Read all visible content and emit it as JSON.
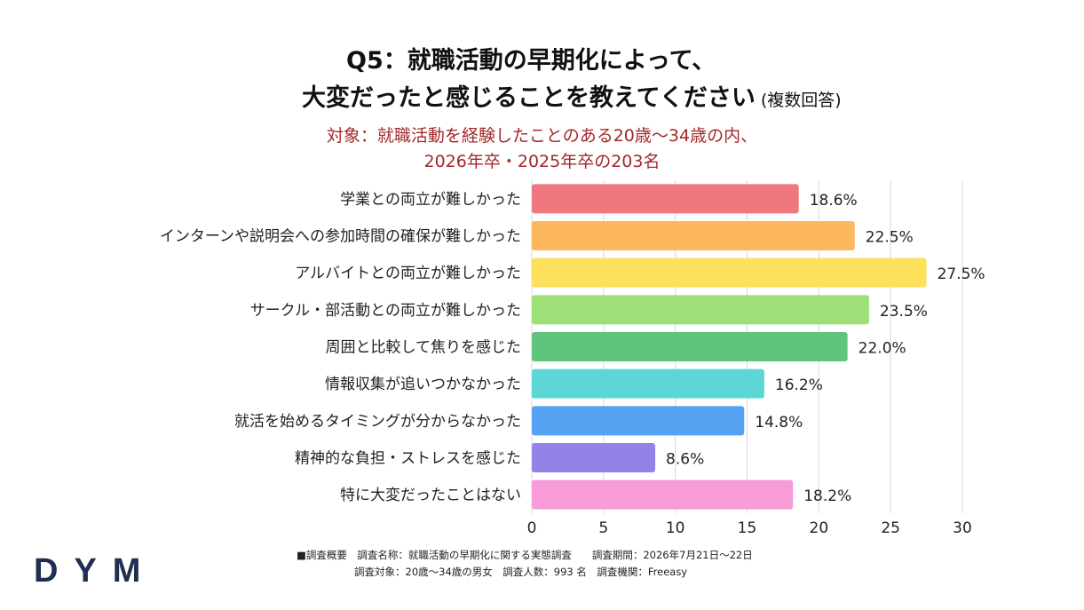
{
  "title": {
    "line1": "Q5：就職活動の早期化によって、",
    "line2": "大変だったと感じることを教えてください",
    "note": "(複数回答)"
  },
  "subtitle": {
    "line1": "対象：就職活動を経験したことのある20歳～34歳の内、",
    "line2": "2026年卒・2025年卒の203名"
  },
  "chart_data": {
    "type": "bar",
    "orientation": "horizontal",
    "categories": [
      "学業との両立が難しかった",
      "インターンや説明会への参加時間の確保が難しかった",
      "アルバイトとの両立が難しかった",
      "サークル・部活動との両立が難しかった",
      "周囲と比較して焦りを感じた",
      "情報収集が追いつかなかった",
      "就活を始めるタイミングが分からなかった",
      "精神的な負担・ストレスを感じた",
      "特に大変だったことはない"
    ],
    "values": [
      18.6,
      22.5,
      27.5,
      23.5,
      22.0,
      16.2,
      14.8,
      8.6,
      18.2
    ],
    "value_labels": [
      "18.6%",
      "22.5%",
      "27.5%",
      "23.5%",
      "22.0%",
      "16.2%",
      "14.8%",
      "8.6%",
      "18.2%"
    ],
    "colors": [
      "#ee7780",
      "#fdb85e",
      "#fde05c",
      "#9ee077",
      "#60c47c",
      "#5dd6d6",
      "#55a2f2",
      "#9283e6",
      "#f89bd8"
    ],
    "xlim": [
      0,
      30
    ],
    "xticks": [
      "0",
      "5",
      "10",
      "15",
      "20",
      "25",
      "30"
    ],
    "grid": true
  },
  "footnote": {
    "line1": "■調査概要　調査名称：就職活動の早期化に関する実態調査　　調査期間：2026年7月21日～22日",
    "line2": "調査対象：20歳～34歳の男女　調査人数：993 名　調査機関：Freeasy"
  },
  "logo": "DYM"
}
